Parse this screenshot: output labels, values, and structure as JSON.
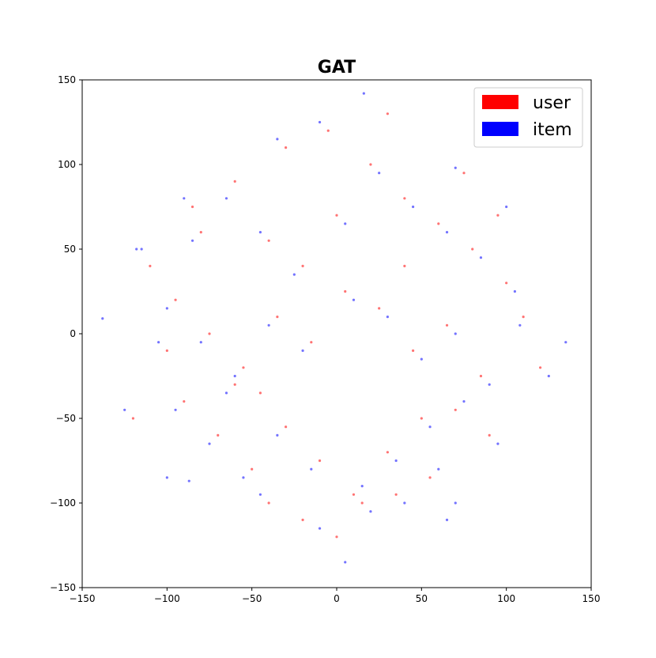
{
  "chart_data": {
    "type": "scatter",
    "title": "GAT",
    "xlabel": "",
    "ylabel": "",
    "xlim": [
      -150,
      150
    ],
    "ylim": [
      -150,
      150
    ],
    "x_ticks": [
      -150,
      -100,
      -50,
      0,
      50,
      100,
      150
    ],
    "y_ticks": [
      -150,
      -100,
      -50,
      0,
      50,
      100,
      150
    ],
    "grid": false,
    "legend_position": "top-right",
    "series": [
      {
        "name": "user",
        "color": "#ff0000",
        "points": [
          [
            -80,
            60
          ],
          [
            -60,
            90
          ],
          [
            -40,
            55
          ],
          [
            -20,
            40
          ],
          [
            0,
            70
          ],
          [
            20,
            100
          ],
          [
            40,
            80
          ],
          [
            60,
            65
          ],
          [
            80,
            50
          ],
          [
            100,
            30
          ],
          [
            -95,
            20
          ],
          [
            -75,
            0
          ],
          [
            -55,
            -20
          ],
          [
            -35,
            10
          ],
          [
            -15,
            -5
          ],
          [
            5,
            25
          ],
          [
            25,
            15
          ],
          [
            45,
            -10
          ],
          [
            65,
            5
          ],
          [
            85,
            -25
          ],
          [
            -90,
            -40
          ],
          [
            -70,
            -60
          ],
          [
            -50,
            -80
          ],
          [
            -30,
            -55
          ],
          [
            -10,
            -75
          ],
          [
            10,
            -95
          ],
          [
            30,
            -70
          ],
          [
            50,
            -50
          ],
          [
            70,
            -45
          ],
          [
            90,
            -60
          ],
          [
            -20,
            -110
          ],
          [
            0,
            -120
          ],
          [
            15,
            -100
          ],
          [
            35,
            -95
          ],
          [
            55,
            -85
          ],
          [
            -40,
            -100
          ],
          [
            -60,
            -30
          ],
          [
            -100,
            -10
          ],
          [
            110,
            10
          ],
          [
            -5,
            120
          ],
          [
            30,
            130
          ],
          [
            -30,
            110
          ],
          [
            75,
            95
          ],
          [
            -85,
            75
          ],
          [
            95,
            70
          ],
          [
            120,
            -20
          ],
          [
            -110,
            40
          ],
          [
            -120,
            -50
          ],
          [
            40,
            40
          ],
          [
            -45,
            -35
          ]
        ]
      },
      {
        "name": "item",
        "color": "#0000ff",
        "points": [
          [
            -85,
            55
          ],
          [
            -65,
            80
          ],
          [
            -45,
            60
          ],
          [
            -25,
            35
          ],
          [
            5,
            65
          ],
          [
            25,
            95
          ],
          [
            45,
            75
          ],
          [
            65,
            60
          ],
          [
            85,
            45
          ],
          [
            105,
            25
          ],
          [
            -100,
            15
          ],
          [
            -80,
            -5
          ],
          [
            -60,
            -25
          ],
          [
            -40,
            5
          ],
          [
            -20,
            -10
          ],
          [
            10,
            20
          ],
          [
            30,
            10
          ],
          [
            50,
            -15
          ],
          [
            70,
            0
          ],
          [
            90,
            -30
          ],
          [
            -95,
            -45
          ],
          [
            -75,
            -65
          ],
          [
            -55,
            -85
          ],
          [
            -35,
            -60
          ],
          [
            -15,
            -80
          ],
          [
            15,
            -90
          ],
          [
            35,
            -75
          ],
          [
            55,
            -55
          ],
          [
            75,
            -40
          ],
          [
            95,
            -65
          ],
          [
            -10,
            -115
          ],
          [
            5,
            -135
          ],
          [
            20,
            -105
          ],
          [
            40,
            -100
          ],
          [
            60,
            -80
          ],
          [
            -45,
            -95
          ],
          [
            -65,
            -35
          ],
          [
            -105,
            -5
          ],
          [
            108,
            5
          ],
          [
            -10,
            125
          ],
          [
            16,
            142
          ],
          [
            -35,
            115
          ],
          [
            70,
            98
          ],
          [
            -90,
            80
          ],
          [
            100,
            75
          ],
          [
            125,
            -25
          ],
          [
            -115,
            50
          ],
          [
            -138,
            9
          ],
          [
            135,
            -5
          ],
          [
            70,
            -100
          ],
          [
            -87,
            -87
          ],
          [
            -118,
            50
          ],
          [
            -125,
            -45
          ],
          [
            -100,
            -85
          ],
          [
            65,
            -110
          ]
        ]
      }
    ]
  }
}
